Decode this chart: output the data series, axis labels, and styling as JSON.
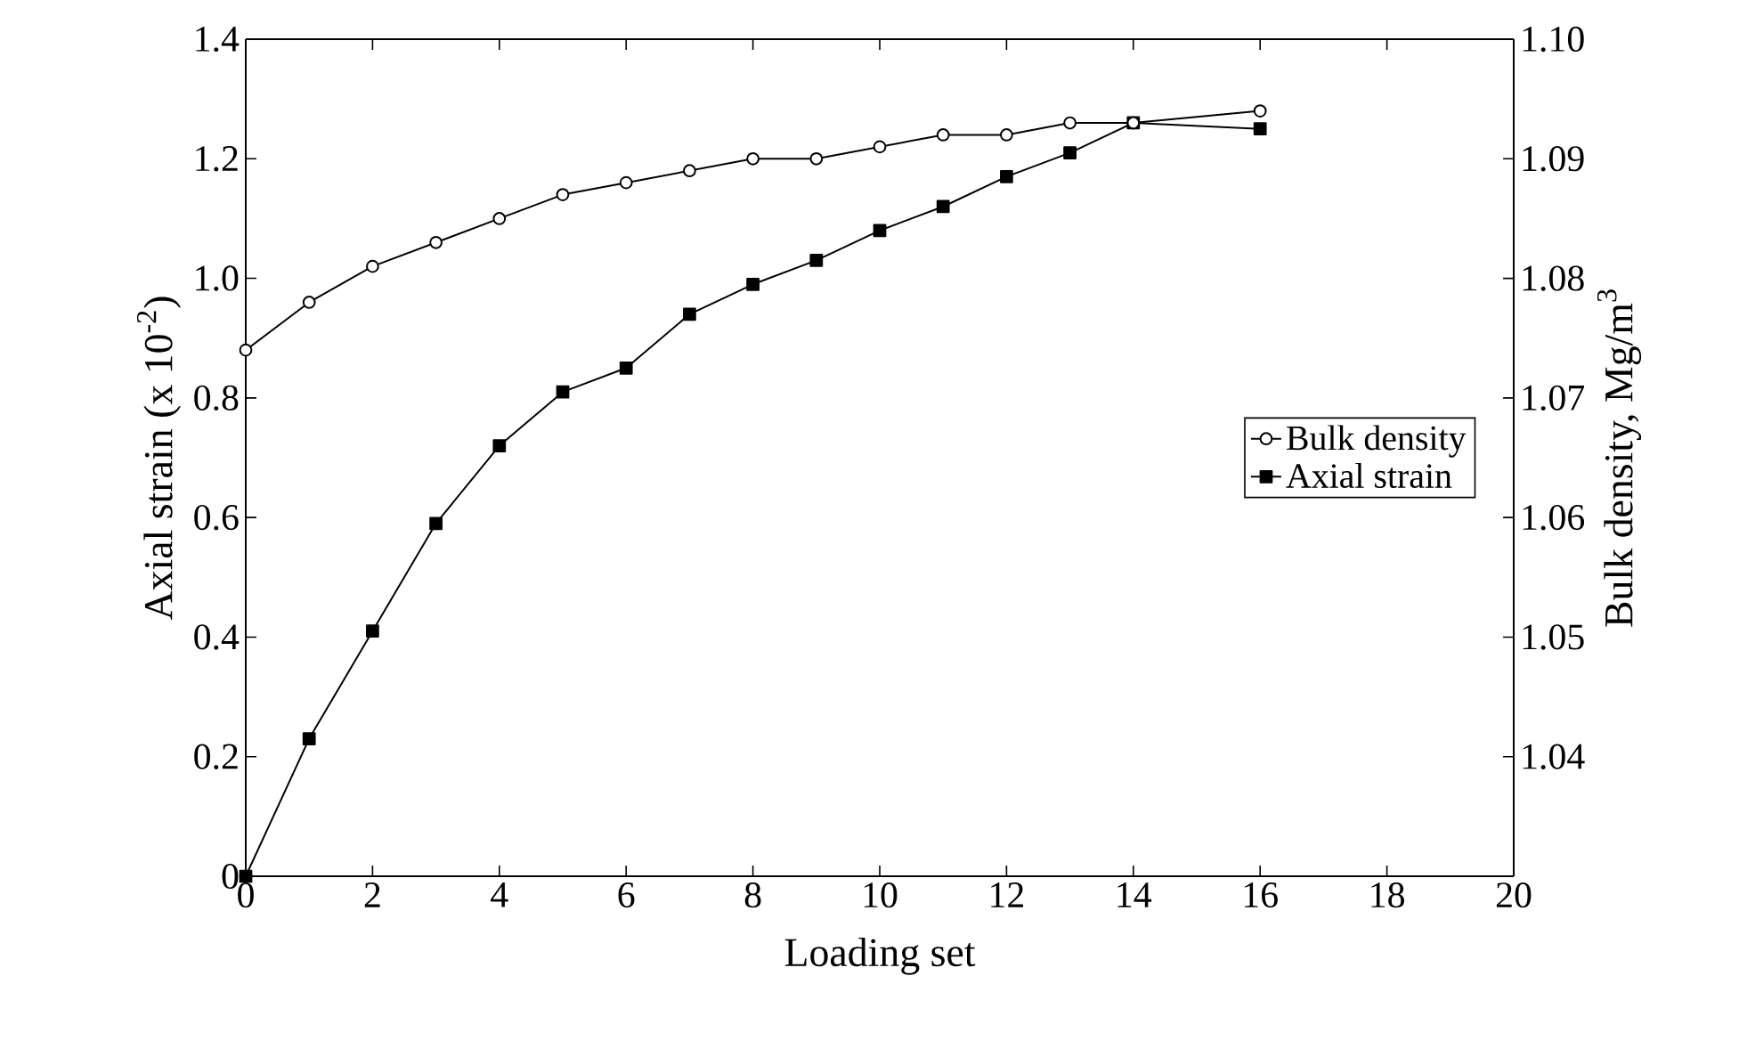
{
  "chart_data": {
    "type": "line",
    "xlabel": "Loading set",
    "ylabel": "Axial strain (x 10$^{-2}$)",
    "y2label": "Bulk density, Mg/m$^{3}$",
    "xlim": [
      0,
      20
    ],
    "xticks": [
      0,
      2,
      4,
      6,
      8,
      10,
      12,
      14,
      16,
      18,
      20
    ],
    "ylim": [
      0,
      1.4
    ],
    "yticks": [
      0,
      0.2,
      0.4,
      0.6,
      0.8,
      {
        "value": 1.0,
        "label": "1.0"
      },
      1.2,
      1.4
    ],
    "y2lim": [
      1.03,
      1.1
    ],
    "y2ticks": [
      {
        "value": 1.03,
        "label": null
      },
      1.04,
      1.05,
      1.06,
      1.07,
      1.08,
      1.09,
      {
        "value": 1.1,
        "label": "1.10"
      }
    ],
    "annotations": [
      "0"
    ],
    "x": [
      0,
      1,
      2,
      3,
      4,
      5,
      6,
      7,
      8,
      9,
      10,
      11,
      12,
      13,
      14,
      16
    ],
    "series": [
      {
        "name": "Bulk density",
        "color": "#000000",
        "axis": "y2",
        "marker": "circle",
        "values": [
          1.074,
          1.078,
          1.081,
          1.083,
          1.085,
          1.087,
          1.088,
          1.089,
          1.09,
          1.09,
          1.091,
          1.092,
          1.092,
          1.093,
          1.093,
          1.094
        ]
      },
      {
        "name": "Axial strain",
        "color": "#000000",
        "marker": "square",
        "values": [
          0,
          0.23,
          0.41,
          0.59,
          0.72,
          0.81,
          0.85,
          0.94,
          0.99,
          1.03,
          1.08,
          1.12,
          1.17,
          1.21,
          1.26,
          1.25
        ]
      }
    ],
    "legend": "right",
    "grid": false
  }
}
